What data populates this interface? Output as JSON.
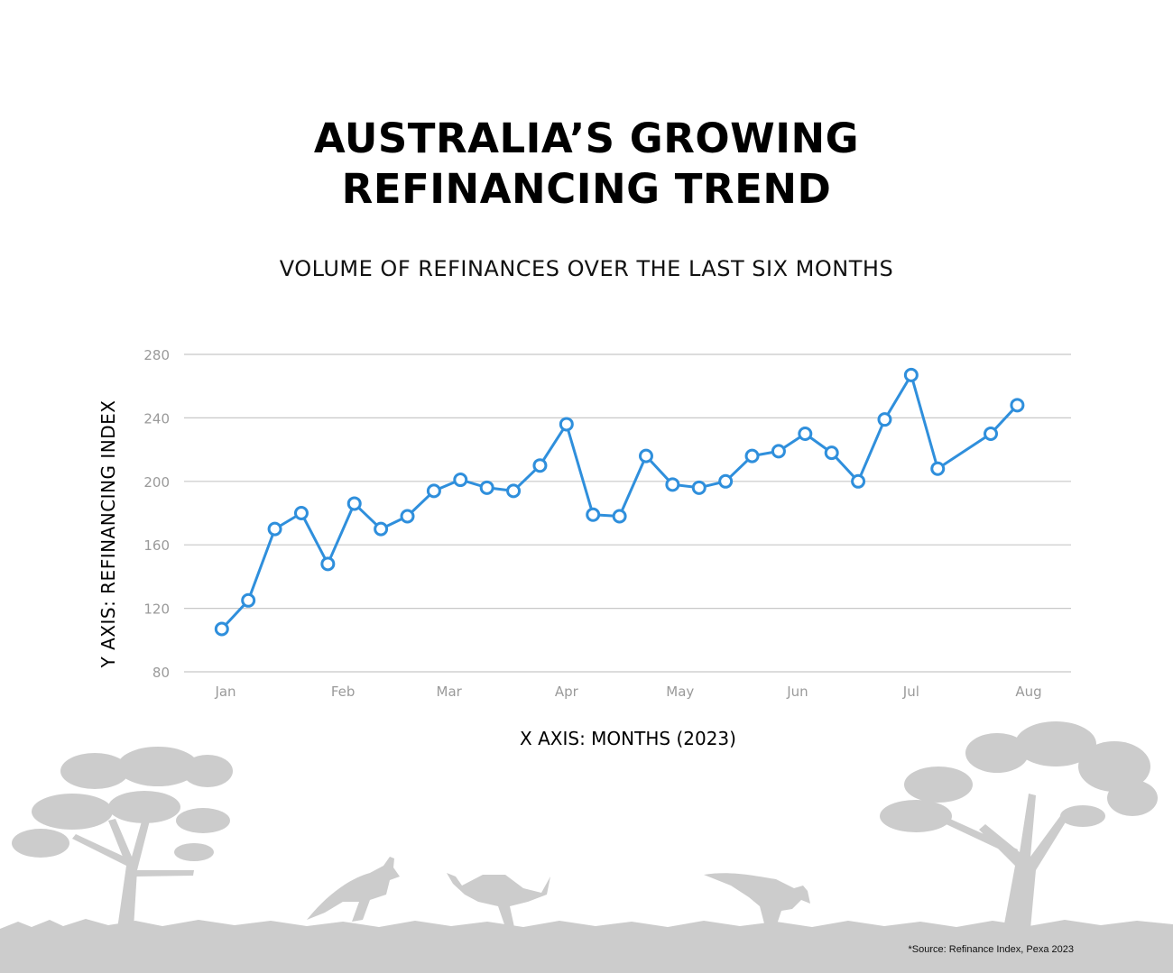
{
  "title_line1": "AUSTRALIA’S GROWING",
  "title_line2": "REFINANCING TREND",
  "subtitle": "VOLUME OF REFINANCES OVER THE LAST SIX MONTHS",
  "source_note": "*Source: Refinance Index, Pexa 2023",
  "colors": {
    "line": "#2f8fdc",
    "grid": "#c8c8c8",
    "tick_text": "#9a9a9a",
    "scenery": "#cccccc"
  },
  "chart_data": {
    "type": "line",
    "xlabel": "X AXIS: MONTHS (2023)",
    "ylabel": "Y AXIS: REFINANCING INDEX",
    "ylim": [
      80,
      280
    ],
    "yticks": [
      80,
      120,
      160,
      200,
      240,
      280
    ],
    "xlim": [
      "2023-01-01",
      "2023-08-07"
    ],
    "month_ticks": [
      {
        "label": "Jan",
        "date": "2023-01-01"
      },
      {
        "label": "Feb",
        "date": "2023-02-01"
      },
      {
        "label": "Mar",
        "date": "2023-03-01"
      },
      {
        "label": "Apr",
        "date": "2023-04-01"
      },
      {
        "label": "May",
        "date": "2023-05-01"
      },
      {
        "label": "Jun",
        "date": "2023-06-01"
      },
      {
        "label": "Jul",
        "date": "2023-07-01"
      },
      {
        "label": "Aug",
        "date": "2023-08-01"
      }
    ],
    "grid": true,
    "markers": "hollow circles",
    "series": [
      {
        "points": [
          {
            "x": "2022-12-31",
            "y": 107
          },
          {
            "x": "2023-01-07",
            "y": 125
          },
          {
            "x": "2023-01-14",
            "y": 170
          },
          {
            "x": "2023-01-21",
            "y": 180
          },
          {
            "x": "2023-01-28",
            "y": 148
          },
          {
            "x": "2023-02-04",
            "y": 186
          },
          {
            "x": "2023-02-11",
            "y": 170
          },
          {
            "x": "2023-02-18",
            "y": 178
          },
          {
            "x": "2023-02-25",
            "y": 194
          },
          {
            "x": "2023-03-04",
            "y": 201
          },
          {
            "x": "2023-03-11",
            "y": 196
          },
          {
            "x": "2023-03-18",
            "y": 194
          },
          {
            "x": "2023-03-25",
            "y": 210
          },
          {
            "x": "2023-04-01",
            "y": 236
          },
          {
            "x": "2023-04-08",
            "y": 179
          },
          {
            "x": "2023-04-15",
            "y": 178
          },
          {
            "x": "2023-04-22",
            "y": 216
          },
          {
            "x": "2023-04-29",
            "y": 198
          },
          {
            "x": "2023-05-06",
            "y": 196
          },
          {
            "x": "2023-05-13",
            "y": 200
          },
          {
            "x": "2023-05-20",
            "y": 216
          },
          {
            "x": "2023-05-27",
            "y": 219
          },
          {
            "x": "2023-06-03",
            "y": 230
          },
          {
            "x": "2023-06-10",
            "y": 218
          },
          {
            "x": "2023-06-17",
            "y": 200
          },
          {
            "x": "2023-06-24",
            "y": 239
          },
          {
            "x": "2023-07-01",
            "y": 267
          },
          {
            "x": "2023-07-08",
            "y": 208
          },
          {
            "x": "2023-07-22",
            "y": 230
          },
          {
            "x": "2023-07-29",
            "y": 248
          }
        ]
      }
    ]
  }
}
